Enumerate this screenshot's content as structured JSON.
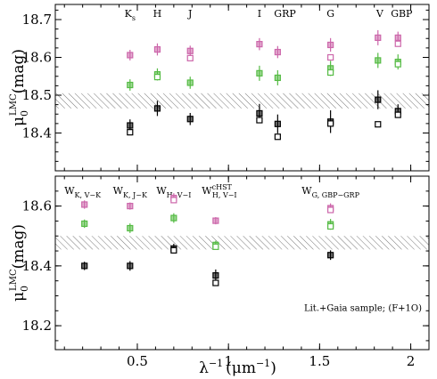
{
  "chart_data": [
    {
      "type": "scatter",
      "panel": "top",
      "ylabel_main": "μ",
      "ylabel_sub": "0",
      "ylabel_sup": "LMC",
      "ylabel_unit": "(mag)",
      "xlim": [
        0.05,
        2.1
      ],
      "ylim": [
        18.3,
        18.74
      ],
      "yticks": [
        18.4,
        18.5,
        18.6,
        18.7
      ],
      "ytick_labels": [
        "18.4",
        "18.5",
        "18.6",
        "18.7"
      ],
      "band": [
        18.465,
        18.505
      ],
      "band_labels": [
        {
          "x": 0.46,
          "text": "K",
          "sub": "s"
        },
        {
          "x": 0.61,
          "text": "H",
          "sub": ""
        },
        {
          "x": 0.79,
          "text": "J",
          "sub": ""
        },
        {
          "x": 1.17,
          "text": "I",
          "sub": ""
        },
        {
          "x": 1.31,
          "text": "GRP",
          "sub": ""
        },
        {
          "x": 1.56,
          "text": "G",
          "sub": ""
        },
        {
          "x": 1.83,
          "text": "V",
          "sub": ""
        },
        {
          "x": 1.95,
          "text": "GBP",
          "sub": ""
        }
      ],
      "series": [
        {
          "color": "#cc66aa",
          "points": [
            {
              "x": 0.46,
              "y": 18.606,
              "err": 0.014
            },
            {
              "x": 0.61,
              "y": 18.621,
              "err": 0.016
            },
            {
              "x": 0.79,
              "y": 18.617,
              "err": 0.014
            },
            {
              "x": 0.79,
              "y": 18.598,
              "err": 0.0,
              "open": true
            },
            {
              "x": 1.17,
              "y": 18.635,
              "err": 0.016
            },
            {
              "x": 1.27,
              "y": 18.614,
              "err": 0.016
            },
            {
              "x": 1.56,
              "y": 18.633,
              "err": 0.018
            },
            {
              "x": 1.56,
              "y": 18.6,
              "err": 0.0,
              "open": true
            },
            {
              "x": 1.82,
              "y": 18.652,
              "err": 0.02
            },
            {
              "x": 1.93,
              "y": 18.652,
              "err": 0.016
            },
            {
              "x": 1.93,
              "y": 18.636,
              "err": 0.0,
              "open": true
            }
          ]
        },
        {
          "color": "#55bb44",
          "points": [
            {
              "x": 0.46,
              "y": 18.527,
              "err": 0.015
            },
            {
              "x": 0.61,
              "y": 18.555,
              "err": 0.016
            },
            {
              "x": 0.61,
              "y": 18.548,
              "err": 0.0,
              "open": true
            },
            {
              "x": 0.79,
              "y": 18.533,
              "err": 0.016
            },
            {
              "x": 1.17,
              "y": 18.558,
              "err": 0.02
            },
            {
              "x": 1.27,
              "y": 18.546,
              "err": 0.02
            },
            {
              "x": 1.56,
              "y": 18.571,
              "err": 0.02
            },
            {
              "x": 1.56,
              "y": 18.56,
              "err": 0.0,
              "open": true
            },
            {
              "x": 1.82,
              "y": 18.592,
              "err": 0.02
            },
            {
              "x": 1.93,
              "y": 18.588,
              "err": 0.02
            },
            {
              "x": 1.93,
              "y": 18.582,
              "err": 0.0,
              "open": true
            }
          ]
        },
        {
          "color": "#000000",
          "points": [
            {
              "x": 0.46,
              "y": 18.42,
              "err": 0.016
            },
            {
              "x": 0.46,
              "y": 18.402,
              "err": 0.0,
              "open": true
            },
            {
              "x": 0.61,
              "y": 18.465,
              "err": 0.02
            },
            {
              "x": 0.79,
              "y": 18.437,
              "err": 0.016
            },
            {
              "x": 1.17,
              "y": 18.452,
              "err": 0.025
            },
            {
              "x": 1.17,
              "y": 18.434,
              "err": 0.0,
              "open": true
            },
            {
              "x": 1.27,
              "y": 18.424,
              "err": 0.025
            },
            {
              "x": 1.27,
              "y": 18.39,
              "err": 0.0,
              "open": true
            },
            {
              "x": 1.56,
              "y": 18.43,
              "err": 0.03
            },
            {
              "x": 1.56,
              "y": 18.425,
              "err": 0.0,
              "open": true
            },
            {
              "x": 1.82,
              "y": 18.488,
              "err": 0.025
            },
            {
              "x": 1.82,
              "y": 18.423,
              "err": 0.0,
              "open": true
            },
            {
              "x": 1.93,
              "y": 18.458,
              "err": 0.018
            },
            {
              "x": 1.93,
              "y": 18.448,
              "err": 0.0,
              "open": true
            }
          ]
        }
      ]
    },
    {
      "type": "scatter",
      "panel": "bottom",
      "ylabel_main": "μ",
      "ylabel_sub": "0",
      "ylabel_sup": "LMC",
      "ylabel_unit": "(mag)",
      "xlabel_main": "λ",
      "xlabel_sup": "−1",
      "xlabel_unit": "(μm",
      "xlabel_unit_sup": "−1",
      "xlabel_close": ")",
      "xlim": [
        0.05,
        2.1
      ],
      "ylim": [
        18.12,
        18.7
      ],
      "yticks": [
        18.2,
        18.4,
        18.6
      ],
      "ytick_labels": [
        "18.2",
        "18.4",
        "18.6"
      ],
      "xticks": [
        0.5,
        1.0,
        1.5,
        2.0
      ],
      "xtick_labels": [
        "0.5",
        "1",
        "1.5",
        "2"
      ],
      "band": [
        18.455,
        18.5
      ],
      "annotation": "Lit.+Gaia sample; (F+1O)",
      "band_labels": [
        {
          "x": 0.2,
          "text": "W",
          "sub": "K, V−K",
          "sup": ""
        },
        {
          "x": 0.46,
          "text": "W",
          "sub": "K, J−K",
          "sup": ""
        },
        {
          "x": 0.7,
          "text": "W",
          "sub": "H, V−I",
          "sup": ""
        },
        {
          "x": 0.95,
          "text": "W",
          "sub": "H, V−I",
          "sup": "cHST"
        },
        {
          "x": 1.56,
          "text": "W",
          "sub": "G, GBP−GRP",
          "sup": ""
        }
      ],
      "series": [
        {
          "color": "#cc66aa",
          "points": [
            {
              "x": 0.21,
              "y": 18.605,
              "err": 0.014
            },
            {
              "x": 0.46,
              "y": 18.6,
              "err": 0.012
            },
            {
              "x": 0.7,
              "y": 18.627,
              "err": 0.016
            },
            {
              "x": 0.7,
              "y": 18.62,
              "err": 0.0,
              "open": true
            },
            {
              "x": 0.93,
              "y": 18.551,
              "err": 0.012
            },
            {
              "x": 1.56,
              "y": 18.593,
              "err": 0.016
            },
            {
              "x": 1.56,
              "y": 18.587,
              "err": 0.0,
              "open": true
            }
          ]
        },
        {
          "color": "#55bb44",
          "points": [
            {
              "x": 0.21,
              "y": 18.541,
              "err": 0.014
            },
            {
              "x": 0.46,
              "y": 18.526,
              "err": 0.016
            },
            {
              "x": 0.7,
              "y": 18.56,
              "err": 0.016
            },
            {
              "x": 0.93,
              "y": 18.47,
              "err": 0.014
            },
            {
              "x": 0.93,
              "y": 18.464,
              "err": 0.0,
              "open": true
            },
            {
              "x": 1.56,
              "y": 18.539,
              "err": 0.018
            },
            {
              "x": 1.56,
              "y": 18.532,
              "err": 0.0,
              "open": true
            }
          ]
        },
        {
          "color": "#000000",
          "points": [
            {
              "x": 0.21,
              "y": 18.4,
              "err": 0.014
            },
            {
              "x": 0.46,
              "y": 18.4,
              "err": 0.016
            },
            {
              "x": 0.7,
              "y": 18.458,
              "err": 0.016
            },
            {
              "x": 0.7,
              "y": 18.452,
              "err": 0.0,
              "open": true
            },
            {
              "x": 0.93,
              "y": 18.368,
              "err": 0.02
            },
            {
              "x": 0.93,
              "y": 18.343,
              "err": 0.0,
              "open": true
            },
            {
              "x": 1.56,
              "y": 18.436,
              "err": 0.016
            }
          ]
        }
      ]
    }
  ]
}
